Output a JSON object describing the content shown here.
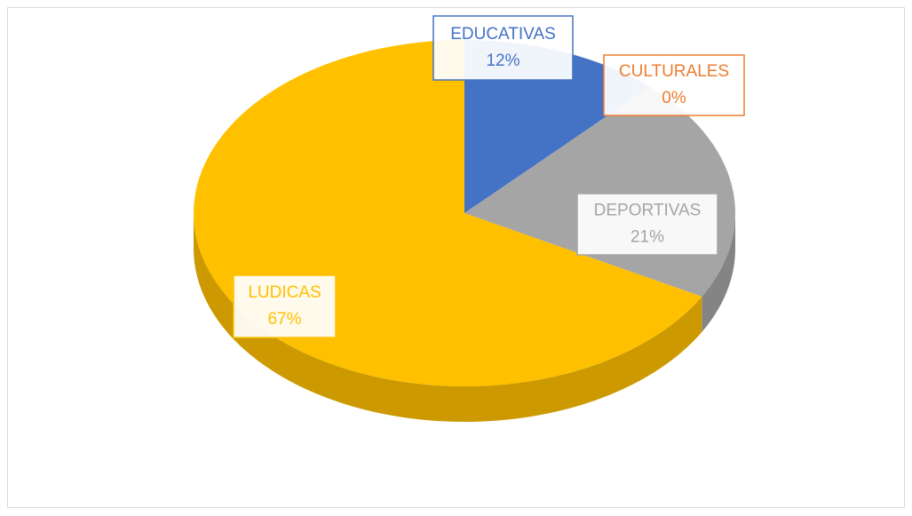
{
  "chart_data": {
    "type": "pie",
    "categories": [
      "EDUCATIVAS",
      "CULTURALES",
      "DEPORTIVAS",
      "LUDICAS"
    ],
    "values": [
      12,
      0,
      21,
      67
    ],
    "value_labels": [
      "12%",
      "0%",
      "21%",
      "67%"
    ],
    "colors": [
      "#4472c4",
      "#ed7d31",
      "#a5a5a5",
      "#ffc000"
    ]
  }
}
